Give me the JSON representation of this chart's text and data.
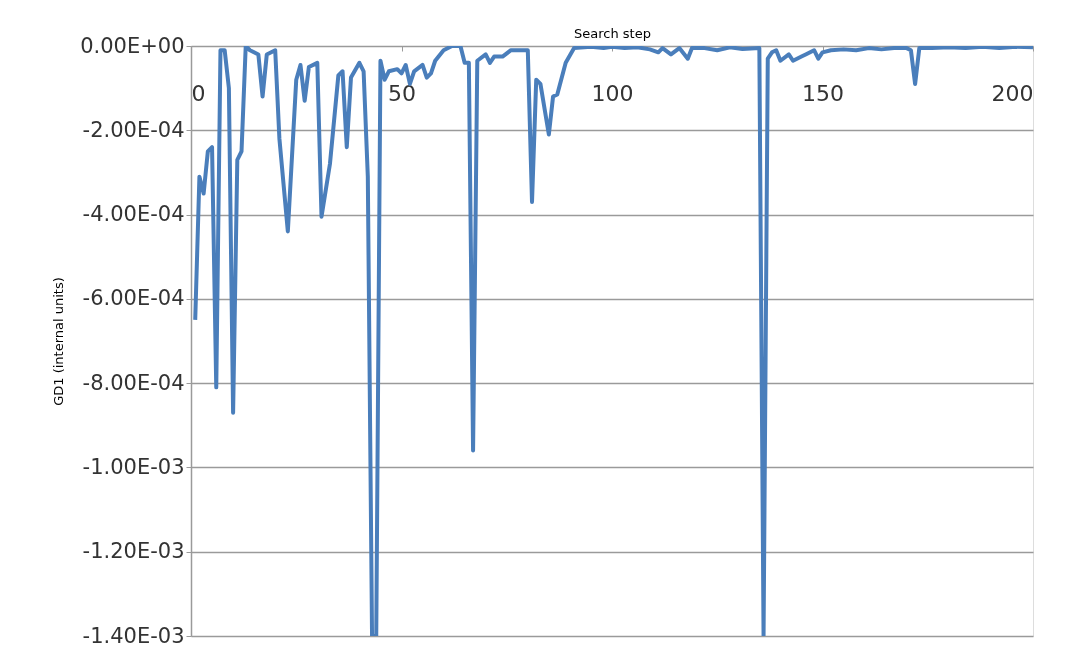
{
  "chart_data": {
    "type": "line",
    "xlabel": "Search step",
    "ylabel": "GD1 (internal units)",
    "x": [
      1,
      2,
      3,
      4,
      5,
      6,
      7,
      8,
      9,
      10,
      11,
      12,
      13,
      14,
      16,
      17,
      18,
      20,
      21,
      23,
      25,
      26,
      27,
      28,
      30,
      31,
      33,
      35,
      36,
      37,
      38,
      40,
      41,
      42,
      43,
      44,
      45,
      46,
      47,
      49,
      50,
      51,
      52,
      53,
      55,
      56,
      57,
      58,
      60,
      62,
      64,
      65,
      66,
      67,
      68,
      70,
      71,
      72,
      74,
      76,
      80,
      81,
      82,
      83,
      85,
      86,
      87,
      89,
      91,
      95,
      98,
      100,
      103,
      106,
      109,
      111,
      112,
      114,
      116,
      118,
      119,
      122,
      125,
      128,
      131,
      135,
      136,
      137,
      138,
      139,
      140,
      142,
      143,
      145,
      146,
      148,
      149,
      150,
      152,
      155,
      158,
      161,
      164,
      167,
      170,
      171,
      172,
      173,
      176,
      180,
      184,
      188,
      192,
      196,
      200
    ],
    "series": [
      {
        "color": "#4a7ebb",
        "values": [
          -0.00065,
          -0.00031,
          -0.00035,
          -0.00025,
          -0.00024,
          -0.00081,
          -1e-05,
          -1e-05,
          -0.0001,
          -0.00087,
          -0.00027,
          -0.00025,
          0,
          -1e-05,
          -2e-05,
          -0.00012,
          -2e-05,
          -1e-05,
          -0.00022,
          -0.00044,
          -8e-05,
          -4.5e-05,
          -0.00013,
          -5e-05,
          -4e-05,
          -0.000405,
          -0.00028,
          -7e-05,
          -6e-05,
          -0.00024,
          -7.5e-05,
          -4e-05,
          -6e-05,
          -0.00031,
          -0.0014,
          -0.0014,
          -3.5e-05,
          -8e-05,
          -6e-05,
          -5.5e-05,
          -6.5e-05,
          -4.5e-05,
          -9e-05,
          -6e-05,
          -4.5e-05,
          -7.5e-05,
          -6.5e-05,
          -3.5e-05,
          -1e-05,
          0,
          0,
          -4e-05,
          -4e-05,
          -0.00096,
          -3.5e-05,
          -2e-05,
          -4e-05,
          -2.5e-05,
          -2.5e-05,
          -1e-05,
          -1e-05,
          -0.00037,
          -8e-05,
          -9e-05,
          -0.00021,
          -0.00012,
          -0.000115,
          -4e-05,
          -5e-06,
          -2e-06,
          -5e-06,
          -2e-06,
          -5e-06,
          -3e-06,
          -8e-06,
          -1.5e-05,
          -5e-06,
          -2e-05,
          -5e-06,
          -3e-05,
          -5e-06,
          -5e-06,
          -1e-05,
          -3e-06,
          -7e-06,
          -5e-06,
          -0.0014,
          -3e-05,
          -1.5e-05,
          -1e-05,
          -3.5e-05,
          -2e-05,
          -3.5e-05,
          -2.5e-05,
          -2e-05,
          -1e-05,
          -3e-05,
          -1.5e-05,
          -1e-05,
          -8e-06,
          -1e-05,
          -5e-06,
          -8e-06,
          -5e-06,
          -5e-06,
          -1e-05,
          -9e-05,
          -5e-06,
          -5e-06,
          -3e-06,
          -5e-06,
          -2e-06,
          -5e-06,
          -2e-06,
          -3e-06
        ]
      }
    ],
    "xlim": [
      0,
      200
    ],
    "xticks": [
      0,
      50,
      100,
      150,
      200
    ],
    "ylim": [
      -0.0014,
      0
    ],
    "yticks": [
      {
        "value": 0,
        "label": "0.00E+00"
      },
      {
        "value": -0.0002,
        "label": "-2.00E-04"
      },
      {
        "value": -0.0004,
        "label": "-4.00E-04"
      },
      {
        "value": -0.0006,
        "label": "-6.00E-04"
      },
      {
        "value": -0.0008,
        "label": "-8.00E-04"
      },
      {
        "value": -0.001,
        "label": "-1.00E-03"
      },
      {
        "value": -0.0012,
        "label": "-1.20E-03"
      },
      {
        "value": -0.0014,
        "label": "-1.40E-03"
      }
    ],
    "grid": "y",
    "marker": "none",
    "line_style": "solid"
  }
}
